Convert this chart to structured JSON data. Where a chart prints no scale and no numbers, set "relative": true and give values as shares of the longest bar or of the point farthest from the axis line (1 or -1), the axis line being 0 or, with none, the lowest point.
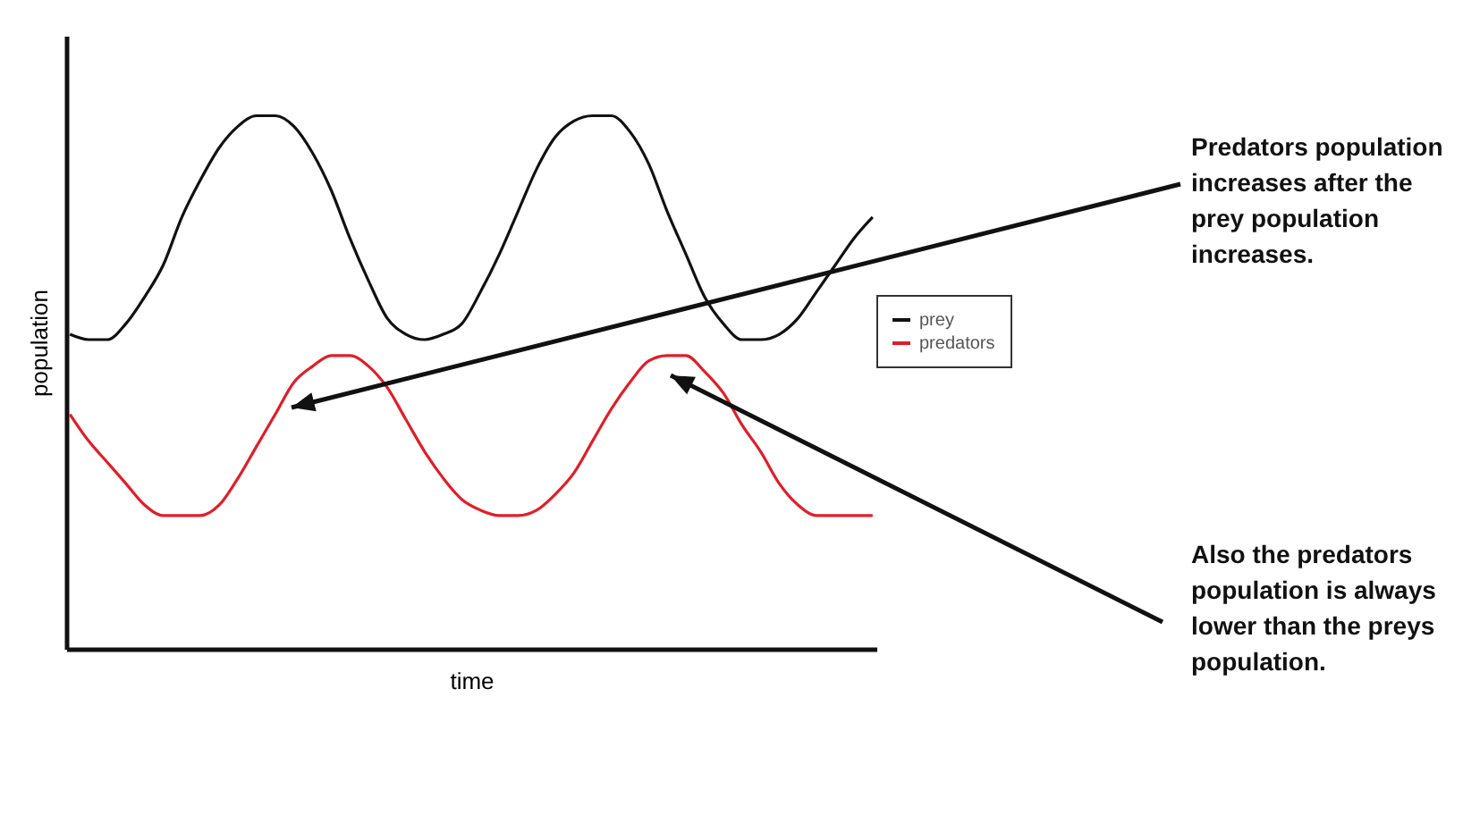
{
  "chart_data": {
    "type": "line",
    "relative": true,
    "xlabel": "time",
    "ylabel": "population",
    "legend": "right",
    "categories": [
      null,
      null,
      null,
      null,
      null,
      null,
      null,
      null,
      null,
      null,
      null,
      null,
      null,
      null,
      null,
      null,
      null,
      null,
      null,
      null,
      null,
      null,
      null,
      null,
      null,
      null,
      null,
      null,
      null,
      null,
      null,
      null,
      null,
      null,
      null,
      null,
      null,
      null,
      null,
      null,
      null,
      null,
      null,
      null
    ],
    "series": [
      {
        "name": "prey",
        "color": "#111111",
        "values": [
          0.59,
          0.58,
          0.58,
          0.61,
          0.66,
          0.72,
          0.81,
          0.88,
          0.94,
          0.98,
          1,
          1,
          0.98,
          0.93,
          0.86,
          0.77,
          0.69,
          0.62,
          0.59,
          0.58,
          0.59,
          0.61,
          0.67,
          0.74,
          0.82,
          0.9,
          0.96,
          0.99,
          1,
          1,
          0.97,
          0.91,
          0.82,
          0.74,
          0.66,
          0.61,
          0.58,
          0.58,
          0.59,
          0.62,
          0.67,
          0.72,
          0.77,
          0.81
        ]
      },
      {
        "name": "predators",
        "color": "#e01e28",
        "values": [
          0.44,
          0.39,
          0.35,
          0.31,
          0.27,
          0.25,
          0.25,
          0.25,
          0.27,
          0.32,
          0.38,
          0.44,
          0.5,
          0.53,
          0.55,
          0.55,
          0.53,
          0.49,
          0.43,
          0.37,
          0.32,
          0.28,
          0.26,
          0.25,
          0.25,
          0.26,
          0.29,
          0.33,
          0.39,
          0.45,
          0.5,
          0.54,
          0.55,
          0.55,
          0.52,
          0.48,
          0.42,
          0.37,
          0.31,
          0.27,
          0.25,
          0.25,
          0.25,
          0.25
        ]
      }
    ],
    "annotations": [
      "Predators population increases after the prey population increases.",
      "Also the predators population is always lower than the preys population."
    ]
  }
}
